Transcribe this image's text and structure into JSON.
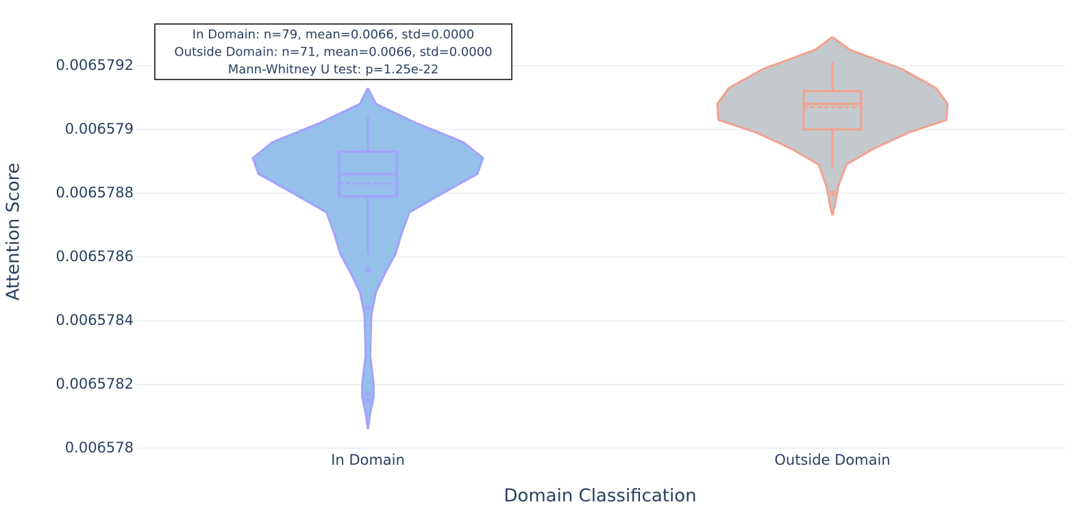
{
  "chart_data": {
    "type": "violin",
    "x_label": "Domain Classification",
    "y_label": "Attention Score",
    "annotations": [
      "In Domain: n=79, mean=0.0066, std=0.0000",
      "Outside Domain: n=71, mean=0.0066, std=0.0000",
      "Mann-Whitney U test: p=1.25e-22"
    ],
    "categories": [
      "In Domain",
      "Outside Domain"
    ],
    "ylim": [
      0.006578,
      0.00657932
    ],
    "yticks": [
      0.006578,
      0.0065782,
      0.0065784,
      0.0065786,
      0.0065788,
      0.006579,
      0.0065792
    ],
    "grid": true,
    "series": [
      {
        "name": "In Domain",
        "color": "#a5a0fc",
        "fill": "#94c0ea",
        "q1": 0.00657879,
        "median": 0.00657886,
        "q3": 0.00657893,
        "mean": 0.00657883,
        "lowerfence": 0.00657861,
        "upperfence": 0.00657904,
        "outliers": [
          0.00657856,
          0.00657844,
          0.00657817,
          0.00657815
        ],
        "kde_y": [
          0.00657913,
          0.00657908,
          0.00657902,
          0.00657896,
          0.00657891,
          0.00657886,
          0.0065788,
          0.00657874,
          0.00657867,
          0.00657861,
          0.00657855,
          0.00657849,
          0.00657842,
          0.00657829,
          0.0065782,
          0.00657816,
          0.00657811,
          0.00657806
        ],
        "kde_density": [
          0,
          0.07,
          0.42,
          0.83,
          1.0,
          0.95,
          0.65,
          0.36,
          0.29,
          0.24,
          0.15,
          0.07,
          0.03,
          0.02,
          0.05,
          0.05,
          0.02,
          0
        ]
      },
      {
        "name": "Outside Domain",
        "color": "#f5a08e",
        "fill": "#c3c9cc",
        "q1": 0.006579,
        "median": 0.00657908,
        "q3": 0.00657912,
        "mean": 0.00657907,
        "lowerfence": 0.00657888,
        "upperfence": 0.00657921,
        "outliers": [
          0.0065788
        ],
        "kde_y": [
          0.00657929,
          0.00657925,
          0.00657919,
          0.00657913,
          0.00657908,
          0.00657903,
          0.00657899,
          0.00657894,
          0.00657889,
          0.00657882,
          0.00657876,
          0.00657873
        ],
        "kde_density": [
          0,
          0.15,
          0.6,
          0.9,
          1.0,
          0.99,
          0.66,
          0.36,
          0.12,
          0.05,
          0.02,
          0
        ]
      }
    ]
  }
}
